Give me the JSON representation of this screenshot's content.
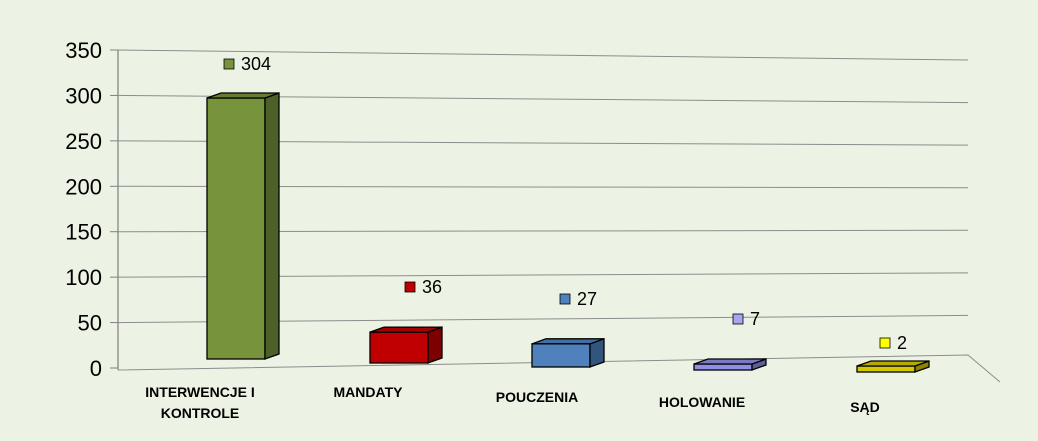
{
  "chart_data": {
    "type": "bar",
    "categories": [
      "INTERWENCJE I KONTROLE",
      "MANDATY",
      "POUCZENIA",
      "HOLOWANIE",
      "SĄD"
    ],
    "category_display": [
      [
        "INTERWENCJE I",
        "KONTROLE"
      ],
      [
        "MANDATY"
      ],
      [
        "POUCZENIA"
      ],
      [
        "HOLOWANIE"
      ],
      [
        "SĄD"
      ]
    ],
    "values": [
      304,
      36,
      27,
      7,
      2
    ],
    "value_labels": [
      "304",
      "36",
      "27",
      "7",
      "2"
    ],
    "colors": [
      "#77933c",
      "#c00000",
      "#4f81bd",
      "#8f8fe6",
      "#d6c800"
    ],
    "marker_colors": [
      "#77933c",
      "#c00000",
      "#4f81bd",
      "#a5a5f0",
      "#ffff00"
    ],
    "ylim": [
      0,
      350
    ],
    "y_ticks": [
      "0",
      "50",
      "100",
      "150",
      "200",
      "250",
      "300",
      "350"
    ],
    "grid": true,
    "legend": "none",
    "title": "",
    "xlabel": "",
    "ylabel": ""
  }
}
